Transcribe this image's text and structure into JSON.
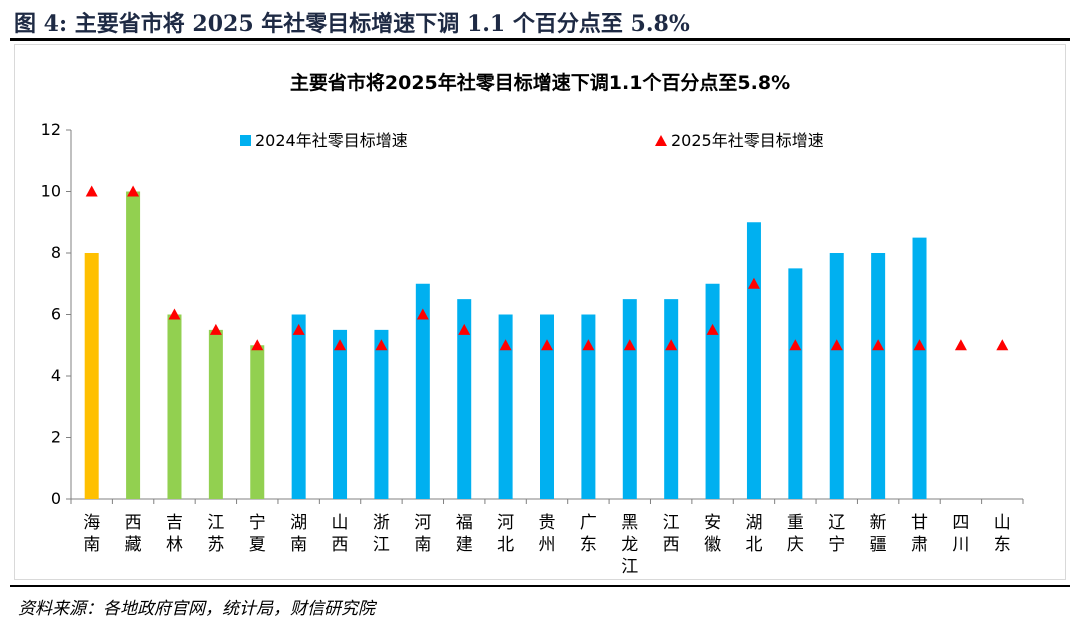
{
  "figure": {
    "title": "图 4:  主要省市将 2025 年社零目标增速下调 1.1 个百分点至 5.8%",
    "source": "资料来源：各地政府官网，统计局，财信研究院"
  },
  "colors": {
    "blue": "#00b0f0",
    "green": "#92d050",
    "orange": "#ffc000",
    "marker": "#ff0000"
  },
  "chart_data": {
    "type": "bar",
    "title": "主要省市将2025年社零目标增速下调1.1个百分点至5.8%",
    "categories": [
      "海南",
      "西藏",
      "吉林",
      "江苏",
      "宁夏",
      "湖南",
      "山西",
      "浙江",
      "河南",
      "福建",
      "河北",
      "贵州",
      "广东",
      "黑龙江",
      "江西",
      "安徽",
      "湖北",
      "重庆",
      "辽宁",
      "新疆",
      "甘肃",
      "四川",
      "山东"
    ],
    "series": [
      {
        "name": "2024年社零目标增速",
        "type": "bar",
        "values": [
          8,
          10,
          6,
          5.5,
          5,
          6,
          5.5,
          5.5,
          7,
          6.5,
          6,
          6,
          6,
          6.5,
          6.5,
          7,
          9,
          7.5,
          8,
          8,
          8.5,
          null,
          null
        ],
        "bar_colors": [
          "orange",
          "green",
          "green",
          "green",
          "green",
          "blue",
          "blue",
          "blue",
          "blue",
          "blue",
          "blue",
          "blue",
          "blue",
          "blue",
          "blue",
          "blue",
          "blue",
          "blue",
          "blue",
          "blue",
          "blue",
          "blue",
          "blue"
        ]
      },
      {
        "name": "2025年社零目标增速",
        "type": "scatter",
        "marker": "triangle",
        "values": [
          10,
          10,
          6,
          5.5,
          5,
          5.5,
          5,
          5,
          6,
          5.5,
          5,
          5,
          5,
          5,
          5,
          5.5,
          7,
          5,
          5,
          5,
          5,
          5,
          5
        ]
      }
    ],
    "yticks": [
      "0",
      "2",
      "4",
      "6",
      "8",
      "10",
      "12"
    ],
    "ylim": [
      0,
      12
    ],
    "grid": false,
    "legend_position": "top"
  }
}
